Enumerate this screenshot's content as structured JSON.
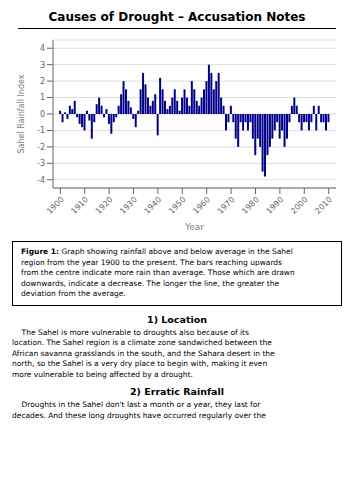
{
  "chart_data": {
    "type": "bar",
    "title": "Causes of Drought – Accusation Notes",
    "xlabel": "Year",
    "ylabel": "Sahel Rainfall Index",
    "x": [
      1900,
      1901,
      1902,
      1903,
      1904,
      1905,
      1906,
      1907,
      1908,
      1909,
      1910,
      1911,
      1912,
      1913,
      1914,
      1915,
      1916,
      1917,
      1918,
      1919,
      1920,
      1921,
      1922,
      1923,
      1924,
      1925,
      1926,
      1927,
      1928,
      1929,
      1930,
      1931,
      1932,
      1933,
      1934,
      1935,
      1936,
      1937,
      1938,
      1939,
      1940,
      1941,
      1942,
      1943,
      1944,
      1945,
      1946,
      1947,
      1948,
      1949,
      1950,
      1951,
      1952,
      1953,
      1954,
      1955,
      1956,
      1957,
      1958,
      1959,
      1960,
      1961,
      1962,
      1963,
      1964,
      1965,
      1966,
      1967,
      1968,
      1969,
      1970,
      1971,
      1972,
      1973,
      1974,
      1975,
      1976,
      1977,
      1978,
      1979,
      1980,
      1981,
      1982,
      1983,
      1984,
      1985,
      1986,
      1987,
      1988,
      1989,
      1990,
      1991,
      1992,
      1993,
      1994,
      1995,
      1996,
      1997,
      1998,
      1999,
      2000,
      2001,
      2002,
      2003,
      2004,
      2005,
      2006,
      2007,
      2008,
      2009,
      2010
    ],
    "values": [
      0.2,
      -0.5,
      0.1,
      -0.3,
      0.5,
      0.3,
      0.8,
      -0.2,
      -0.6,
      -0.8,
      -1.0,
      0.2,
      -0.4,
      -1.5,
      -0.5,
      0.6,
      1.0,
      0.5,
      -0.2,
      0.3,
      -0.6,
      -1.2,
      -0.5,
      -0.2,
      0.5,
      1.2,
      2.0,
      1.5,
      0.8,
      0.4,
      -0.3,
      -0.8,
      0.2,
      1.5,
      2.5,
      1.8,
      1.0,
      0.5,
      0.8,
      1.2,
      -1.3,
      2.2,
      1.5,
      0.8,
      0.3,
      0.5,
      1.0,
      1.5,
      0.8,
      0.2,
      1.0,
      1.5,
      1.0,
      0.5,
      2.0,
      1.5,
      0.8,
      0.5,
      1.0,
      1.5,
      2.0,
      3.0,
      2.5,
      1.5,
      2.0,
      2.5,
      1.0,
      0.5,
      -1.0,
      -0.5,
      0.5,
      -0.5,
      -1.5,
      -2.0,
      -0.5,
      -1.0,
      -0.5,
      -1.0,
      -0.5,
      -1.5,
      -2.5,
      -1.5,
      -2.0,
      -3.5,
      -3.8,
      -2.5,
      -2.0,
      -1.5,
      -1.0,
      -0.5,
      -1.5,
      -1.0,
      -2.0,
      -1.5,
      -0.5,
      0.5,
      1.0,
      0.5,
      -0.5,
      -1.0,
      -0.5,
      -0.5,
      -1.0,
      -0.5,
      0.5,
      -1.0,
      0.5,
      -0.5,
      -0.5,
      -1.0,
      -0.5
    ],
    "color": "#00008B",
    "xlim": [
      1897,
      2013
    ],
    "xticks": [
      1900,
      1910,
      1920,
      1930,
      1940,
      1950,
      1960,
      1970,
      1980,
      1990,
      2000,
      2010
    ],
    "ylim": [
      -4.5,
      4.5
    ],
    "yticks": [
      -4,
      -3,
      -2,
      -1,
      0,
      1,
      2,
      3,
      4
    ],
    "grid": true,
    "annotations": [
      {
        "label": "Figure 1:",
        "text": " Graph showing rainfall above and below average in the Sahel\nregion from the year 1900 to the present. The bars reaching upwards\nfrom the centre indicate more rain than average. Those which are drawn\ndownwards, indicate a decrease. The longer the line, the greater the\ndeviation from the average."
      },
      {
        "heading": "1)  Location",
        "text": "    The Sahel is more vulnerable to droughts also because of its\nlocation. The Sahel region is a climate zone sandwiched between the\nAfrican savanna grasslands in the south, and the Sahara desert in the\nnorth, so the Sahel is a very dry place to begin with, making it even\nmore vulnerable to being affected by a drought."
      },
      {
        "heading": "2)  Erratic Rainfall",
        "text": "    Droughts in the Sahel don't last a month or a year, they last for\ndecades. And these long droughts have occurred regularly over the"
      }
    ]
  }
}
